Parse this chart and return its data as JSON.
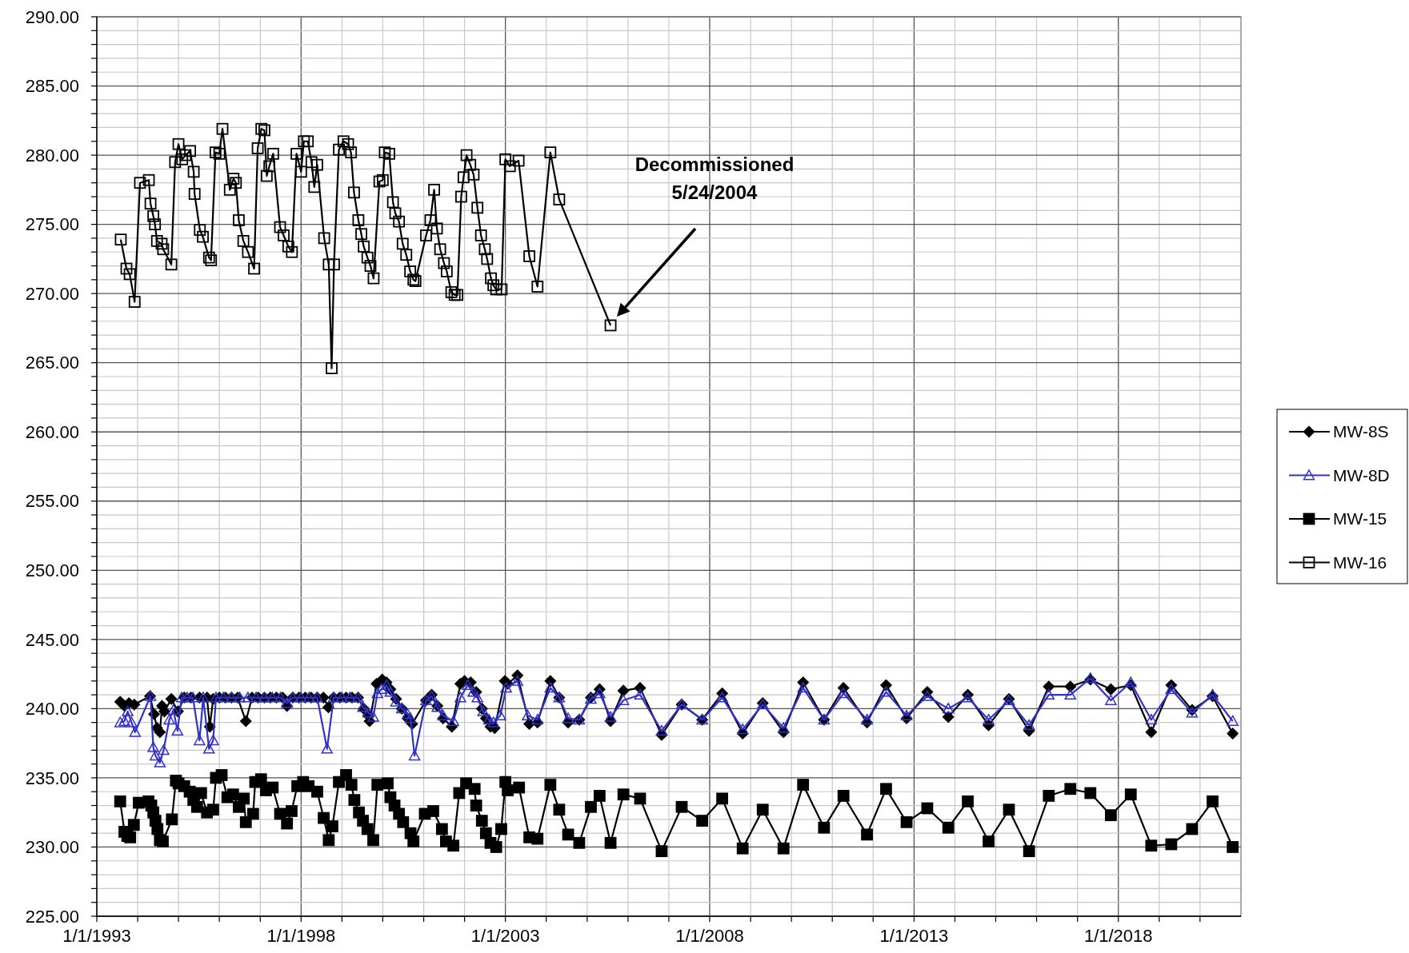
{
  "chart_data": {
    "type": "line",
    "xlim": [
      "1993-01-01",
      "2021-01-01"
    ],
    "ylim": [
      225,
      290
    ],
    "xticks": [
      {
        "value": "1993-01-01",
        "label": "1/1/1993"
      },
      {
        "value": "1994-01-01",
        "label": null
      },
      {
        "value": "1995-01-01",
        "label": null
      },
      {
        "value": "1996-01-01",
        "label": null
      },
      {
        "value": "1997-01-01",
        "label": null
      },
      {
        "value": "1998-01-01",
        "label": "1/1/1998"
      },
      {
        "value": "1999-01-01",
        "label": null
      },
      {
        "value": "2000-01-01",
        "label": null
      },
      {
        "value": "2001-01-01",
        "label": null
      },
      {
        "value": "2002-01-01",
        "label": null
      },
      {
        "value": "2003-01-01",
        "label": "1/1/2003"
      },
      {
        "value": "2004-01-01",
        "label": null
      },
      {
        "value": "2005-01-01",
        "label": null
      },
      {
        "value": "2006-01-01",
        "label": null
      },
      {
        "value": "2007-01-01",
        "label": null
      },
      {
        "value": "2008-01-01",
        "label": "1/1/2008"
      },
      {
        "value": "2009-01-01",
        "label": null
      },
      {
        "value": "2010-01-01",
        "label": null
      },
      {
        "value": "2011-01-01",
        "label": null
      },
      {
        "value": "2012-01-01",
        "label": null
      },
      {
        "value": "2013-01-01",
        "label": "1/1/2013"
      },
      {
        "value": "2014-01-01",
        "label": null
      },
      {
        "value": "2015-01-01",
        "label": null
      },
      {
        "value": "2016-01-01",
        "label": null
      },
      {
        "value": "2017-01-01",
        "label": null
      },
      {
        "value": "2018-01-01",
        "label": "1/1/2018"
      },
      {
        "value": "2019-01-01",
        "label": null
      },
      {
        "value": "2020-01-01",
        "label": null
      }
    ],
    "yticks": [
      {
        "value": 225,
        "label": "225.00"
      },
      {
        "value": 226,
        "label": null
      },
      {
        "value": 227,
        "label": null
      },
      {
        "value": 228,
        "label": null
      },
      {
        "value": 229,
        "label": null
      },
      {
        "value": 230,
        "label": "230.00"
      },
      {
        "value": 231,
        "label": null
      },
      {
        "value": 232,
        "label": null
      },
      {
        "value": 233,
        "label": null
      },
      {
        "value": 234,
        "label": null
      },
      {
        "value": 235,
        "label": "235.00"
      },
      {
        "value": 236,
        "label": null
      },
      {
        "value": 237,
        "label": null
      },
      {
        "value": 238,
        "label": null
      },
      {
        "value": 239,
        "label": null
      },
      {
        "value": 240,
        "label": "240.00"
      },
      {
        "value": 241,
        "label": null
      },
      {
        "value": 242,
        "label": null
      },
      {
        "value": 243,
        "label": null
      },
      {
        "value": 244,
        "label": null
      },
      {
        "value": 245,
        "label": "245.00"
      },
      {
        "value": 246,
        "label": null
      },
      {
        "value": 247,
        "label": null
      },
      {
        "value": 248,
        "label": null
      },
      {
        "value": 249,
        "label": null
      },
      {
        "value": 250,
        "label": "250.00"
      },
      {
        "value": 251,
        "label": null
      },
      {
        "value": 252,
        "label": null
      },
      {
        "value": 253,
        "label": null
      },
      {
        "value": 254,
        "label": null
      },
      {
        "value": 255,
        "label": "255.00"
      },
      {
        "value": 256,
        "label": null
      },
      {
        "value": 257,
        "label": null
      },
      {
        "value": 258,
        "label": null
      },
      {
        "value": 259,
        "label": null
      },
      {
        "value": 260,
        "label": "260.00"
      },
      {
        "value": 261,
        "label": null
      },
      {
        "value": 262,
        "label": null
      },
      {
        "value": 263,
        "label": null
      },
      {
        "value": 264,
        "label": null
      },
      {
        "value": 265,
        "label": "265.00"
      },
      {
        "value": 266,
        "label": null
      },
      {
        "value": 267,
        "label": null
      },
      {
        "value": 268,
        "label": null
      },
      {
        "value": 269,
        "label": null
      },
      {
        "value": 270,
        "label": "270.00"
      },
      {
        "value": 271,
        "label": null
      },
      {
        "value": 272,
        "label": null
      },
      {
        "value": 273,
        "label": null
      },
      {
        "value": 274,
        "label": null
      },
      {
        "value": 275,
        "label": "275.00"
      },
      {
        "value": 276,
        "label": null
      },
      {
        "value": 277,
        "label": null
      },
      {
        "value": 278,
        "label": null
      },
      {
        "value": 279,
        "label": null
      },
      {
        "value": 280,
        "label": "280.00"
      },
      {
        "value": 281,
        "label": null
      },
      {
        "value": 282,
        "label": null
      },
      {
        "value": 283,
        "label": null
      },
      {
        "value": 284,
        "label": null
      },
      {
        "value": 285,
        "label": "285.00"
      },
      {
        "value": 286,
        "label": null
      },
      {
        "value": 287,
        "label": null
      },
      {
        "value": 288,
        "label": null
      },
      {
        "value": 289,
        "label": null
      },
      {
        "value": 290,
        "label": "290.00"
      }
    ],
    "grid": true,
    "legend": "right",
    "line_style": "solid",
    "annotations": [
      "Decommissioned\n5/24/2004"
    ],
    "series": [
      {
        "name": "MW-8S",
        "color": "#000000",
        "marker": "diamond",
        "x": [
          "1993-07-29",
          "1993-09-05",
          "1993-10-15",
          "1993-12-02",
          "1994-04-22",
          "1994-05-28",
          "1994-06-23",
          "1994-07-19",
          "1994-08-07",
          "1994-08-28",
          "1994-10-29",
          "1994-12-27",
          "1995-02-21",
          "1995-04-22",
          "1995-07-08",
          "1995-09-13",
          "1995-10-08",
          "1995-11-07",
          "1996-01-01",
          "1996-02-25",
          "1996-04-19",
          "1996-06-13",
          "1996-08-25",
          "1996-10-19",
          "1996-12-13",
          "1997-02-07",
          "1997-04-01",
          "1997-05-25",
          "1997-07-19",
          "1997-08-28",
          "1997-10-19",
          "1997-12-13",
          "1998-02-07",
          "1998-04-01",
          "1998-05-25",
          "1998-07-19",
          "1998-09-02",
          "1998-10-19",
          "1998-12-13",
          "1999-02-07",
          "1999-04-01",
          "1999-05-25",
          "1999-07-15",
          "1999-08-25",
          "1999-09-05",
          "1999-11-07",
          "1999-12-27",
          "2000-02-03",
          "2000-03-09",
          "2000-04-29",
          "2000-06-20",
          "2000-08-10",
          "2000-09-20",
          "2001-01-22",
          "2001-03-13",
          "2001-05-03",
          "2001-06-23",
          "2001-09-09",
          "2001-11-25",
          "2002-01-01",
          "2002-02-25",
          "2002-04-15",
          "2002-06-05",
          "2002-07-11",
          "2002-08-21",
          "2002-09-27",
          "2002-12-27",
          "2003-01-22",
          "2003-04-19",
          "2003-08-03",
          "2003-10-15",
          "2004-02-07",
          "2004-04-26",
          "2004-07-15",
          "2004-10-22",
          "2005-02-03",
          "2005-04-22",
          "2005-07-29",
          "2005-11-21",
          "2006-04-19",
          "2006-10-29",
          "2007-04-26",
          "2007-10-26",
          "2008-04-22",
          "2008-10-22",
          "2009-04-19",
          "2009-10-22",
          "2010-04-15",
          "2010-10-19",
          "2011-04-11",
          "2011-11-07",
          "2012-04-26",
          "2012-10-26",
          "2013-04-29",
          "2013-11-03",
          "2014-04-26",
          "2014-10-29",
          "2015-04-29",
          "2015-10-26",
          "2016-04-19",
          "2016-10-29",
          "2017-04-26",
          "2017-10-26",
          "2018-04-22",
          "2018-10-22",
          "2019-04-19",
          "2019-10-22",
          "2020-04-22",
          "2020-10-19"
        ],
        "values": [
          240.5,
          240.2,
          240.4,
          240.3,
          240.9,
          239.6,
          238.6,
          238.3,
          240.2,
          239.8,
          240.7,
          239.8,
          240.8,
          240.8,
          240.8,
          240.8,
          238.7,
          240.7,
          240.8,
          240.8,
          240.8,
          240.8,
          239.1,
          240.8,
          240.8,
          240.8,
          240.8,
          240.8,
          240.8,
          240.2,
          240.8,
          240.8,
          240.8,
          240.8,
          240.8,
          240.8,
          240.1,
          240.8,
          240.8,
          240.8,
          240.8,
          240.8,
          240.0,
          239.5,
          239.1,
          241.8,
          242.1,
          241.9,
          241.4,
          240.7,
          240.0,
          239.3,
          238.9,
          240.6,
          241.0,
          240.2,
          239.3,
          238.7,
          241.8,
          242.0,
          241.9,
          241.2,
          240.0,
          239.3,
          238.7,
          238.6,
          242.0,
          241.8,
          242.4,
          238.9,
          239.0,
          242.0,
          240.8,
          239.0,
          239.2,
          240.8,
          241.4,
          239.1,
          241.3,
          241.5,
          238.1,
          240.3,
          239.2,
          241.1,
          238.2,
          240.4,
          238.3,
          241.9,
          239.2,
          241.5,
          239.0,
          241.7,
          239.3,
          241.2,
          239.4,
          241.0,
          238.8,
          240.7,
          238.4,
          241.6,
          241.6,
          242.1,
          241.4,
          241.7,
          238.3,
          241.7,
          239.9,
          240.9,
          238.2
        ]
      },
      {
        "name": "MW-8D",
        "color": "#3232c8",
        "marker": "triangle-open",
        "x": [
          "1993-07-29",
          "1993-09-05",
          "1993-10-04",
          "1993-11-07",
          "1993-12-09",
          "1994-04-26",
          "1994-05-21",
          "1994-06-09",
          "1994-07-19",
          "1994-08-21",
          "1994-10-11",
          "1994-11-17",
          "1994-12-23",
          "1995-01-29",
          "1995-03-20",
          "1995-05-10",
          "1995-07-08",
          "1995-08-10",
          "1995-10-01",
          "1995-11-07",
          "1995-12-02",
          "1996-02-07",
          "1996-04-19",
          "1996-07-01",
          "1996-09-13",
          "1996-11-25",
          "1997-02-07",
          "1997-04-19",
          "1997-07-01",
          "1997-08-28",
          "1997-10-19",
          "1998-01-01",
          "1998-03-13",
          "1998-05-25",
          "1998-08-21",
          "1998-10-19",
          "1999-01-01",
          "1999-03-13",
          "1999-05-25",
          "1999-07-08",
          "1999-08-25",
          "1999-10-08",
          "1999-11-14",
          "1999-12-20",
          "2000-02-03",
          "2000-03-09",
          "2000-04-29",
          "2000-06-20",
          "2000-08-10",
          "2000-09-05",
          "2000-10-11",
          "2001-01-22",
          "2001-03-13",
          "2001-05-03",
          "2001-06-23",
          "2001-09-23",
          "2001-11-25",
          "2002-01-29",
          "2002-03-20",
          "2002-04-26",
          "2002-06-16",
          "2002-08-07",
          "2002-09-16",
          "2002-11-17",
          "2003-01-08",
          "2003-04-19",
          "2003-07-19",
          "2003-10-15",
          "2004-02-07",
          "2004-04-26",
          "2004-07-15",
          "2004-10-22",
          "2005-02-03",
          "2005-04-22",
          "2005-07-29",
          "2005-11-21",
          "2006-04-19",
          "2006-10-29",
          "2007-04-26",
          "2007-10-26",
          "2008-04-22",
          "2008-10-22",
          "2009-04-19",
          "2009-10-22",
          "2010-04-15",
          "2010-10-19",
          "2011-04-11",
          "2011-11-07",
          "2012-04-26",
          "2012-10-26",
          "2013-04-29",
          "2013-11-03",
          "2014-04-26",
          "2014-10-29",
          "2015-04-29",
          "2015-10-26",
          "2016-04-19",
          "2016-10-29",
          "2017-04-26",
          "2017-10-26",
          "2018-04-22",
          "2018-10-22",
          "2019-04-19",
          "2019-10-22",
          "2020-04-22",
          "2020-10-19"
        ],
        "values": [
          239.0,
          239.1,
          239.8,
          239.0,
          238.3,
          240.9,
          237.2,
          236.6,
          236.1,
          237.0,
          239.2,
          239.9,
          238.4,
          240.8,
          240.8,
          240.8,
          237.7,
          240.8,
          237.1,
          237.7,
          240.8,
          240.8,
          240.8,
          240.8,
          240.8,
          240.8,
          240.8,
          240.8,
          240.8,
          240.4,
          240.8,
          240.8,
          240.8,
          240.8,
          237.1,
          240.8,
          240.8,
          240.8,
          240.8,
          240.1,
          239.7,
          239.4,
          241.1,
          241.4,
          241.7,
          241.2,
          240.5,
          240.0,
          239.6,
          239.3,
          236.6,
          240.6,
          240.9,
          240.1,
          239.5,
          239.1,
          240.8,
          241.7,
          241.2,
          240.8,
          239.8,
          239.2,
          239.0,
          239.5,
          241.5,
          242.0,
          239.5,
          239.2,
          241.5,
          240.8,
          239.3,
          239.2,
          240.7,
          241.1,
          239.4,
          240.6,
          241.0,
          238.4,
          240.3,
          239.2,
          240.8,
          238.5,
          240.3,
          238.6,
          241.5,
          239.2,
          241.1,
          239.2,
          241.2,
          239.5,
          240.9,
          240.0,
          240.8,
          239.2,
          240.6,
          238.8,
          241.0,
          241.0,
          242.2,
          240.6,
          241.9,
          239.2,
          241.4,
          239.7,
          241.0,
          239.1
        ]
      },
      {
        "name": "MW-15",
        "color": "#000000",
        "marker": "square",
        "x": [
          "1993-07-29",
          "1993-09-05",
          "1993-10-01",
          "1993-10-26",
          "1993-11-28",
          "1994-01-11",
          "1994-04-08",
          "1994-05-03",
          "1994-05-21",
          "1994-06-09",
          "1994-06-27",
          "1994-07-19",
          "1994-08-14",
          "1994-11-03",
          "1994-12-09",
          "1995-01-01",
          "1995-02-21",
          "1995-04-11",
          "1995-05-14",
          "1995-06-16",
          "1995-07-22",
          "1995-09-13",
          "1995-11-07",
          "1995-12-02",
          "1996-01-22",
          "1996-03-13",
          "1996-05-03",
          "1996-06-23",
          "1996-08-07",
          "1996-08-25",
          "1996-10-29",
          "1996-11-17",
          "1997-01-08",
          "1997-02-21",
          "1997-04-22",
          "1997-06-27",
          "1997-08-28",
          "1997-10-08",
          "1997-11-28",
          "1998-01-19",
          "1998-03-09",
          "1998-05-25",
          "1998-07-22",
          "1998-09-05",
          "1998-10-08",
          "1998-12-05",
          "1999-02-07",
          "1999-03-27",
          "1999-04-22",
          "1999-06-02",
          "1999-07-08",
          "1999-08-17",
          "1999-10-08",
          "1999-11-14",
          "2000-02-14",
          "2000-03-09",
          "2000-04-15",
          "2000-05-25",
          "2000-07-01",
          "2000-09-05",
          "2000-10-01",
          "2001-01-11",
          "2001-03-27",
          "2001-06-13",
          "2001-07-19",
          "2001-09-23",
          "2001-11-14",
          "2002-01-15",
          "2002-04-01",
          "2002-04-15",
          "2002-06-05",
          "2002-07-11",
          "2002-08-21",
          "2002-10-11",
          "2002-11-25",
          "2003-01-01",
          "2003-01-22",
          "2003-05-03",
          "2003-08-03",
          "2003-10-15",
          "2004-02-07",
          "2004-04-26",
          "2004-07-15",
          "2004-10-22",
          "2005-02-03",
          "2005-04-22",
          "2005-07-29",
          "2005-11-21",
          "2006-04-19",
          "2006-10-29",
          "2007-04-26",
          "2007-10-26",
          "2008-04-22",
          "2008-10-22",
          "2009-04-19",
          "2009-10-22",
          "2010-04-15",
          "2010-10-19",
          "2011-04-11",
          "2011-11-07",
          "2012-04-26",
          "2012-10-26",
          "2013-04-29",
          "2013-11-03",
          "2014-04-26",
          "2014-10-29",
          "2015-04-29",
          "2015-10-26",
          "2016-04-19",
          "2016-10-29",
          "2017-04-26",
          "2017-10-26",
          "2018-04-22",
          "2018-10-22",
          "2019-04-19",
          "2019-10-22",
          "2020-04-22",
          "2020-10-19"
        ],
        "values": [
          233.3,
          231.1,
          230.8,
          230.7,
          231.6,
          233.2,
          233.3,
          233.0,
          232.5,
          231.9,
          231.3,
          230.5,
          230.4,
          232.0,
          234.8,
          234.6,
          234.4,
          234.0,
          233.4,
          232.9,
          233.9,
          232.5,
          232.7,
          235.0,
          235.2,
          233.6,
          233.8,
          232.9,
          233.5,
          231.8,
          232.4,
          234.7,
          234.9,
          234.1,
          234.3,
          232.4,
          231.7,
          232.6,
          234.4,
          234.7,
          234.4,
          234.0,
          232.1,
          230.5,
          231.5,
          234.7,
          235.2,
          234.5,
          233.4,
          232.5,
          231.9,
          231.3,
          230.5,
          234.5,
          234.6,
          233.6,
          233.0,
          232.4,
          231.8,
          231.0,
          230.4,
          232.4,
          232.6,
          231.3,
          230.4,
          230.1,
          233.9,
          234.6,
          234.2,
          233.0,
          231.9,
          231.0,
          230.3,
          230.0,
          231.3,
          234.7,
          234.1,
          234.3,
          230.7,
          230.6,
          234.5,
          232.7,
          230.9,
          230.3,
          232.9,
          233.7,
          230.3,
          233.8,
          233.5,
          229.7,
          232.9,
          231.9,
          233.5,
          229.9,
          232.7,
          229.9,
          234.5,
          231.4,
          233.7,
          230.9,
          234.2,
          231.8,
          232.8,
          231.4,
          233.3,
          230.4,
          232.7,
          229.7,
          233.7,
          234.2,
          233.9,
          232.3,
          233.8,
          230.1,
          230.2,
          231.3,
          233.3,
          230.0
        ]
      },
      {
        "name": "MW-16",
        "color": "#000000",
        "marker": "square-open",
        "x": [
          "1993-08-03",
          "1993-09-23",
          "1993-10-22",
          "1993-12-05",
          "1994-01-22",
          "1994-04-11",
          "1994-04-26",
          "1994-05-21",
          "1994-06-05",
          "1994-06-23",
          "1994-08-03",
          "1994-08-17",
          "1994-10-29",
          "1994-12-02",
          "1995-01-01",
          "1995-02-03",
          "1995-03-05",
          "1995-04-15",
          "1995-05-17",
          "1995-05-25",
          "1995-07-11",
          "1995-08-07",
          "1995-10-01",
          "1995-10-19",
          "1995-11-28",
          "1996-01-01",
          "1996-01-29",
          "1996-04-04",
          "1996-05-07",
          "1996-05-28",
          "1996-06-23",
          "1996-08-03",
          "1996-09-13",
          "1996-11-07",
          "1996-12-09",
          "1997-01-11",
          "1997-02-07",
          "1997-02-28",
          "1997-03-23",
          "1997-04-26",
          "1997-06-27",
          "1997-07-29",
          "1997-09-09",
          "1997-10-11",
          "1997-11-21",
          "1998-01-01",
          "1998-01-26",
          "1998-03-02",
          "1998-04-04",
          "1998-04-29",
          "1998-05-25",
          "1998-07-26",
          "1998-09-05",
          "1998-10-01",
          "1998-10-22",
          "1998-12-05",
          "1999-01-15",
          "1999-02-25",
          "1999-03-23",
          "1999-04-19",
          "1999-05-28",
          "1999-06-23",
          "1999-07-15",
          "1999-08-17",
          "1999-09-13",
          "1999-10-11",
          "1999-12-02",
          "2000-01-01",
          "2000-01-19",
          "2000-02-28",
          "2000-04-01",
          "2000-04-22",
          "2000-05-25",
          "2000-06-27",
          "2000-07-29",
          "2000-09-02",
          "2000-10-01",
          "2000-10-19",
          "2001-01-22",
          "2001-03-02",
          "2001-04-04",
          "2001-04-29",
          "2001-05-28",
          "2001-07-01",
          "2001-07-26",
          "2001-09-05",
          "2001-10-04",
          "2001-10-29",
          "2001-12-02",
          "2001-12-23",
          "2002-01-19",
          "2002-02-21",
          "2002-03-23",
          "2002-04-26",
          "2002-05-28",
          "2002-07-01",
          "2002-07-22",
          "2002-08-25",
          "2002-09-16",
          "2002-10-11",
          "2002-11-28",
          "2003-01-01",
          "2003-02-10",
          "2003-04-29",
          "2003-08-03",
          "2003-10-15",
          "2004-02-07",
          "2004-04-26",
          "2005-07-29"
        ],
        "values": [
          273.9,
          271.8,
          271.4,
          269.4,
          278.0,
          278.2,
          276.5,
          275.6,
          275.0,
          273.8,
          273.6,
          273.2,
          272.1,
          279.5,
          280.8,
          279.7,
          280.0,
          280.3,
          278.8,
          277.2,
          274.6,
          274.1,
          272.6,
          272.4,
          280.2,
          280.1,
          281.9,
          277.5,
          278.3,
          278.0,
          275.3,
          273.8,
          273.0,
          271.8,
          280.5,
          281.9,
          281.8,
          278.5,
          279.2,
          280.1,
          274.8,
          274.2,
          273.4,
          273.0,
          280.1,
          278.8,
          281.0,
          281.0,
          279.5,
          277.7,
          279.3,
          274.0,
          272.1,
          264.6,
          272.1,
          280.4,
          281.0,
          280.8,
          280.2,
          277.3,
          275.3,
          274.3,
          273.4,
          272.6,
          272.0,
          271.1,
          278.1,
          278.2,
          280.2,
          280.1,
          276.6,
          275.8,
          275.2,
          273.6,
          272.8,
          271.6,
          271.0,
          270.9,
          274.2,
          275.3,
          277.5,
          274.7,
          273.2,
          272.2,
          271.6,
          270.1,
          269.9,
          269.9,
          277.0,
          278.4,
          280.0,
          279.3,
          278.6,
          276.2,
          274.2,
          273.2,
          272.5,
          271.1,
          270.6,
          270.3,
          270.3,
          279.7,
          279.2,
          279.6,
          272.7,
          270.5,
          280.2,
          276.8,
          267.7
        ]
      }
    ]
  }
}
